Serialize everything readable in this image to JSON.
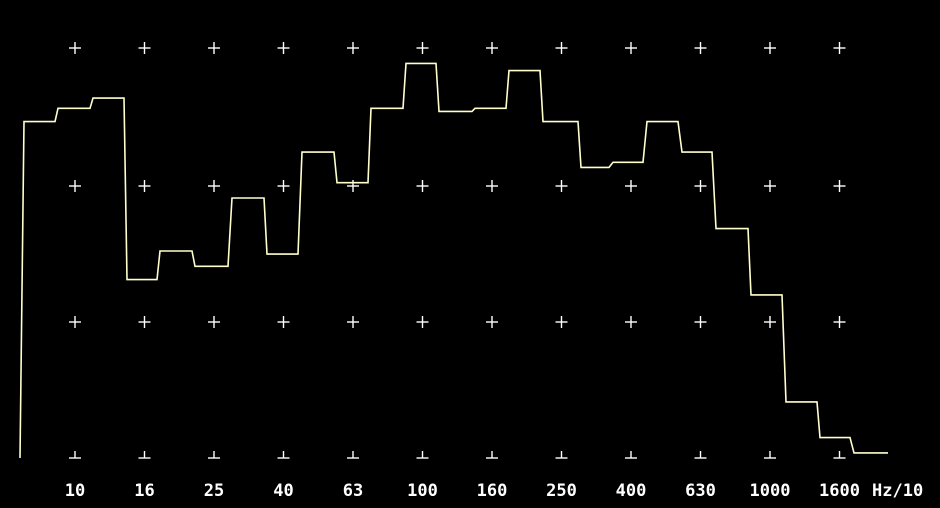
{
  "chart_data": {
    "type": "line",
    "style": "step",
    "title": "",
    "xlabel": "Hz/10",
    "ylabel": "",
    "x_tick_labels": [
      "10",
      "16",
      "25",
      "40",
      "63",
      "100",
      "160",
      "250",
      "400",
      "630",
      "1000",
      "1600"
    ],
    "x_unit": "Hz/10",
    "grid": "cross markers",
    "ylim": [
      0,
      4.1
    ],
    "series": [
      {
        "values": [
          0.0,
          3.3,
          3.3,
          3.43,
          3.43,
          3.53,
          3.53,
          1.75,
          1.75,
          2.03,
          2.03,
          1.88,
          1.88,
          2.55,
          2.55,
          2.0,
          2.0,
          3.0,
          3.0,
          2.7,
          2.7,
          3.43,
          3.43,
          3.87,
          3.87,
          3.4,
          3.4,
          3.43,
          3.43,
          3.8,
          3.8,
          3.3,
          3.3,
          2.85,
          2.85,
          2.9,
          2.9,
          3.3,
          3.3,
          3.0,
          3.0,
          2.25,
          2.25,
          1.6,
          1.6,
          0.55,
          0.55,
          0.2,
          0.2,
          0.05,
          0.05
        ]
      }
    ],
    "colors": {
      "background": "#000000",
      "grid_marker": "#ffffff",
      "curve": "#ffffcc",
      "text": "#ffffff"
    }
  }
}
